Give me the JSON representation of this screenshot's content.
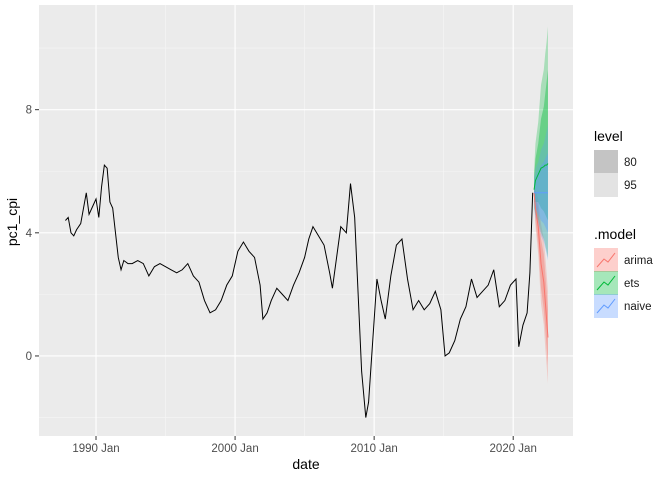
{
  "chart_data": {
    "type": "line",
    "xlabel": "date",
    "ylabel": "pc1_cpi",
    "x_ticks": [
      {
        "label": "1990 Jan",
        "year": 1990.0
      },
      {
        "label": "2000 Jan",
        "year": 2000.0
      },
      {
        "label": "2010 Jan",
        "year": 2010.0
      },
      {
        "label": "2020 Jan",
        "year": 2020.0
      }
    ],
    "y_ticks": [
      0,
      4,
      8
    ],
    "xlim": [
      1985.9,
      2024.3
    ],
    "ylim": [
      -2.6,
      11.4
    ],
    "grid": true,
    "history": {
      "x": [
        1987.8,
        1988.0,
        1988.2,
        1988.4,
        1988.6,
        1988.9,
        1989.1,
        1989.3,
        1989.5,
        1989.8,
        1990.0,
        1990.2,
        1990.4,
        1990.6,
        1990.8,
        1991.0,
        1991.2,
        1991.4,
        1991.6,
        1991.8,
        1992.0,
        1992.3,
        1992.6,
        1993.0,
        1993.4,
        1993.8,
        1994.2,
        1994.6,
        1995.0,
        1995.4,
        1995.8,
        1996.2,
        1996.6,
        1997.0,
        1997.4,
        1997.8,
        1998.2,
        1998.6,
        1999.0,
        1999.4,
        1999.8,
        2000.2,
        2000.6,
        2001.0,
        2001.4,
        2001.8,
        2002.0,
        2002.3,
        2002.6,
        2003.0,
        2003.4,
        2003.8,
        2004.2,
        2004.6,
        2005.0,
        2005.3,
        2005.6,
        2006.0,
        2006.4,
        2006.8,
        2007.0,
        2007.3,
        2007.6,
        2008.0,
        2008.3,
        2008.6,
        2008.9,
        2009.1,
        2009.4,
        2009.6,
        2009.9,
        2010.2,
        2010.5,
        2010.8,
        2011.2,
        2011.6,
        2012.0,
        2012.4,
        2012.8,
        2013.2,
        2013.6,
        2014.0,
        2014.4,
        2014.8,
        2015.1,
        2015.4,
        2015.8,
        2016.2,
        2016.6,
        2017.0,
        2017.4,
        2017.8,
        2018.2,
        2018.6,
        2019.0,
        2019.4,
        2019.8,
        2020.2,
        2020.4,
        2020.7,
        2021.0,
        2021.2,
        2021.4
      ],
      "y": [
        4.4,
        4.5,
        4.0,
        3.9,
        4.1,
        4.3,
        4.8,
        5.3,
        4.6,
        4.9,
        5.1,
        4.5,
        5.5,
        6.2,
        6.1,
        5.0,
        4.8,
        4.0,
        3.2,
        2.8,
        3.1,
        3.0,
        3.0,
        3.1,
        3.0,
        2.6,
        2.9,
        3.0,
        2.9,
        2.8,
        2.7,
        2.8,
        3.0,
        2.6,
        2.4,
        1.8,
        1.4,
        1.5,
        1.8,
        2.3,
        2.6,
        3.4,
        3.7,
        3.4,
        3.2,
        2.3,
        1.2,
        1.4,
        1.8,
        2.2,
        2.0,
        1.8,
        2.3,
        2.7,
        3.2,
        3.8,
        4.2,
        3.9,
        3.6,
        2.7,
        2.2,
        3.2,
        4.2,
        4.0,
        5.6,
        4.5,
        1.5,
        -0.5,
        -2.0,
        -1.5,
        0.5,
        2.5,
        1.8,
        1.2,
        2.6,
        3.6,
        3.8,
        2.5,
        1.5,
        1.8,
        1.5,
        1.7,
        2.1,
        1.5,
        0.0,
        0.1,
        0.5,
        1.2,
        1.6,
        2.5,
        1.9,
        2.1,
        2.3,
        2.8,
        1.6,
        1.8,
        2.3,
        2.5,
        0.3,
        1.0,
        1.4,
        2.7,
        5.3
      ]
    },
    "forecast": {
      "x": [
        2021.5,
        2021.6,
        2021.8,
        2021.9,
        2022.0,
        2022.2,
        2022.3,
        2022.4,
        2022.5
      ],
      "series": [
        {
          "name": "arima",
          "color": "#F8766D",
          "mean": [
            5.3,
            4.8,
            4.2,
            3.6,
            3.0,
            2.4,
            1.8,
            1.2,
            0.6
          ],
          "lo80": [
            5.1,
            4.4,
            3.6,
            2.9,
            2.2,
            1.5,
            0.9,
            0.3,
            -0.3
          ],
          "hi80": [
            5.5,
            5.2,
            4.8,
            4.3,
            3.8,
            3.3,
            2.7,
            2.1,
            1.5
          ],
          "lo95": [
            5.0,
            4.2,
            3.3,
            2.5,
            1.7,
            1.0,
            0.3,
            -0.3,
            -0.9
          ],
          "hi95": [
            5.6,
            5.4,
            5.1,
            4.7,
            4.3,
            3.8,
            3.3,
            2.7,
            2.1
          ]
        },
        {
          "name": "ets",
          "color": "#00BA38",
          "mean": [
            5.4,
            5.7,
            5.9,
            6.0,
            6.1,
            6.15,
            6.2,
            6.2,
            6.25
          ],
          "lo80": [
            5.0,
            5.0,
            5.0,
            4.9,
            4.8,
            4.7,
            4.6,
            4.5,
            4.4
          ],
          "hi80": [
            5.8,
            6.4,
            6.9,
            7.3,
            7.7,
            8.1,
            8.5,
            8.9,
            9.3
          ],
          "lo95": [
            4.8,
            4.6,
            4.4,
            4.2,
            4.0,
            3.8,
            3.6,
            3.4,
            3.2
          ],
          "hi95": [
            6.0,
            6.9,
            7.6,
            8.2,
            8.8,
            9.3,
            9.8,
            10.2,
            10.7
          ]
        },
        {
          "name": "naive",
          "color": "#619CFF",
          "mean": [
            5.3,
            5.3,
            5.3,
            5.3,
            5.3,
            5.3,
            5.3,
            5.3,
            5.3
          ],
          "lo80": [
            5.0,
            4.8,
            4.6,
            4.5,
            4.4,
            4.3,
            4.2,
            4.1,
            4.0
          ],
          "hi80": [
            5.6,
            5.8,
            6.0,
            6.1,
            6.2,
            6.3,
            6.4,
            6.5,
            6.6
          ],
          "lo95": [
            4.8,
            4.5,
            4.3,
            4.1,
            3.9,
            3.7,
            3.5,
            3.3,
            3.1
          ],
          "hi95": [
            5.8,
            6.1,
            6.3,
            6.5,
            6.7,
            6.9,
            7.1,
            7.3,
            7.5
          ]
        }
      ]
    },
    "legend": {
      "level_title": "level",
      "levels": [
        "80",
        "95"
      ],
      "model_title": ".model",
      "models": [
        "arima",
        "ets",
        "naive"
      ],
      "placement": "right"
    }
  }
}
